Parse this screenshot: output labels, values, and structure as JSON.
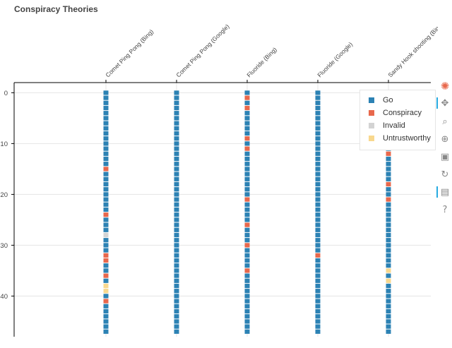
{
  "title": "Conspiracy Theories",
  "colors": {
    "Go": "#2c82b4",
    "Conspiracy": "#e8684c",
    "Invalid": "#d3d3d3",
    "Untrustworthy": "#f8d88e"
  },
  "legend": [
    "Go",
    "Conspiracy",
    "Invalid",
    "Untrustworthy"
  ],
  "toolbar": {
    "items": [
      {
        "name": "bokeh-logo-icon",
        "glyph": "✺",
        "active": false
      },
      {
        "name": "pan-tool-icon",
        "glyph": "✥",
        "active": true
      },
      {
        "name": "box-zoom-tool-icon",
        "glyph": "⌕",
        "active": false
      },
      {
        "name": "wheel-zoom-tool-icon",
        "glyph": "⊕",
        "active": false
      },
      {
        "name": "save-tool-icon",
        "glyph": "▣",
        "active": false
      },
      {
        "name": "reset-tool-icon",
        "glyph": "↻",
        "active": false
      },
      {
        "name": "hover-tool-icon",
        "glyph": "▤",
        "active": true
      },
      {
        "name": "help-icon",
        "glyph": "?",
        "active": false
      }
    ]
  },
  "chart_data": {
    "type": "heatmap",
    "title": "Conspiracy Theories",
    "categories": [
      "Comet Ping Pong (Bing)",
      "Comet Ping Pong (Google)",
      "Fluoride (Bing)",
      "Fluoride (Google)",
      "Sandy Hook shooting (Bing)"
    ],
    "y_range": [
      48,
      -2
    ],
    "y_ticks": [
      0,
      10,
      20,
      30,
      40
    ],
    "grid": true,
    "legend_position": "top-right",
    "series": [
      {
        "category": "Comet Ping Pong (Bing)",
        "labels": {
          "Conspiracy": [
            15,
            24,
            32,
            33,
            36,
            41
          ],
          "Invalid": [
            28
          ],
          "Untrustworthy": [
            38,
            39
          ]
        }
      },
      {
        "category": "Comet Ping Pong (Google)",
        "labels": {}
      },
      {
        "category": "Fluoride (Bing)",
        "labels": {
          "Conspiracy": [
            1,
            3,
            9,
            11,
            21,
            26,
            30,
            35
          ]
        }
      },
      {
        "category": "Fluoride (Google)",
        "labels": {
          "Conspiracy": [
            32
          ]
        }
      },
      {
        "category": "Sandy Hook shooting (Bing)",
        "labels": {
          "Conspiracy": [
            12,
            18,
            21
          ],
          "Untrustworthy": [
            35,
            37
          ]
        }
      }
    ],
    "rows": 48,
    "default_label": "Go"
  }
}
